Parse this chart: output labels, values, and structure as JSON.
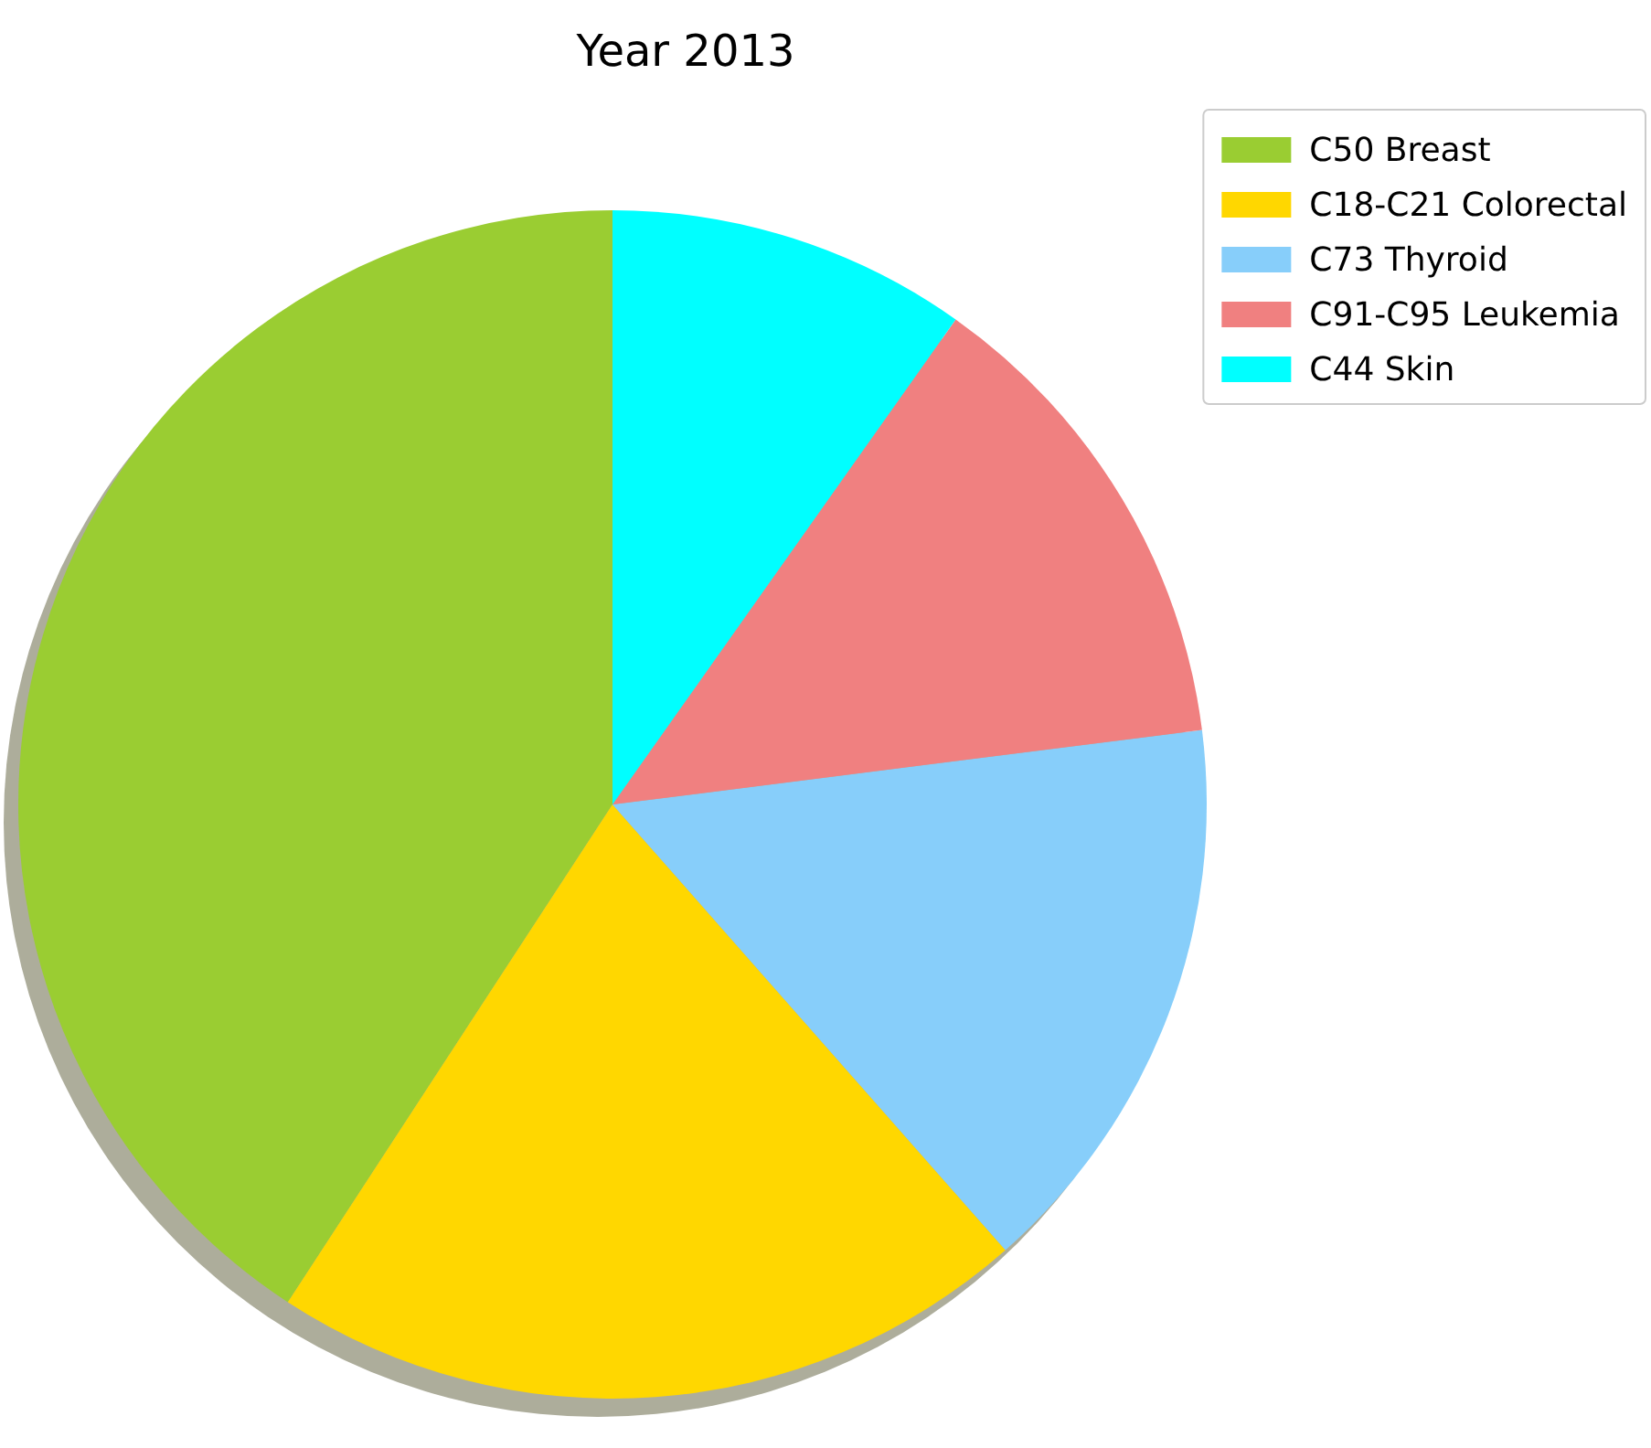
{
  "chart_data": {
    "type": "pie",
    "title": "Year 2013",
    "categories": [
      "C50 Breast",
      "C18-C21 Colorectal",
      "C73 Thyroid",
      "C91-C95 Leukemia",
      "C44 Skin"
    ],
    "values": [
      40.8,
      20.7,
      15.5,
      13.2,
      9.8
    ],
    "colors": [
      "#9acd32",
      "#ffd700",
      "#87cefa",
      "#f08080",
      "#00ffff"
    ],
    "legend": "top right"
  }
}
